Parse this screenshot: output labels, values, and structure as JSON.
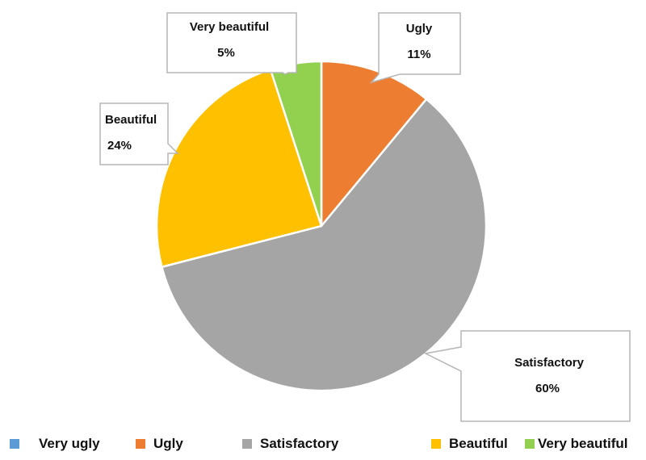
{
  "chart_data": {
    "type": "pie",
    "title": "",
    "slices": [
      {
        "label": "Very ugly",
        "value": 0,
        "value_label": "",
        "color": "#5B9BD5"
      },
      {
        "label": "Ugly",
        "value": 11,
        "value_label": "11%",
        "color": "#ED7D31"
      },
      {
        "label": "Satisfactory",
        "value": 60,
        "value_label": "60%",
        "color": "#A5A5A5"
      },
      {
        "label": "Beautiful",
        "value": 24,
        "value_label": "24%",
        "color": "#FFC000"
      },
      {
        "label": "Very beautiful",
        "value": 5,
        "value_label": "5%",
        "color": "#92D050"
      }
    ],
    "legend_position": "bottom",
    "start_angle_deg": 0,
    "direction": "clockwise"
  }
}
